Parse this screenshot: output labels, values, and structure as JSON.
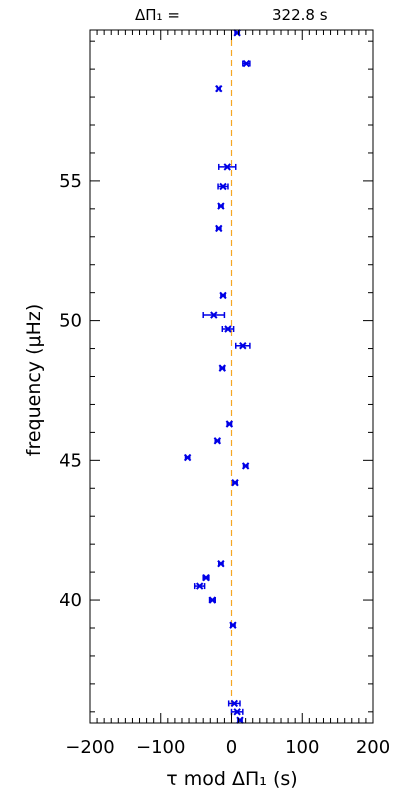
{
  "chart_data": {
    "type": "scatter",
    "title_label": "ΔΠ₁ =",
    "title_value": "322.8 s",
    "xlabel": "τ mod ΔΠ₁ (s)",
    "ylabel": "frequency (μHz)",
    "xlim": [
      -200,
      200
    ],
    "ylim": [
      35.6,
      60.4
    ],
    "x_ticks": [
      -200,
      -100,
      0,
      100,
      200
    ],
    "x_tick_labels": [
      "−200",
      "−100",
      "0",
      "100",
      "200"
    ],
    "y_ticks": [
      40,
      45,
      50,
      55
    ],
    "y_tick_labels": [
      "40",
      "45",
      "50",
      "55"
    ],
    "reference_line_x": 0,
    "colors": {
      "points": "#0000e6",
      "reference_line": "#f5a623",
      "axes": "#000000"
    },
    "points": [
      {
        "x": 8,
        "y": 60.3,
        "err": 3
      },
      {
        "x": 21,
        "y": 59.2,
        "err": 5
      },
      {
        "x": -18,
        "y": 58.3,
        "err": 2
      },
      {
        "x": -6,
        "y": 55.5,
        "err": 12
      },
      {
        "x": -12,
        "y": 54.8,
        "err": 7
      },
      {
        "x": -15,
        "y": 54.1,
        "err": 3
      },
      {
        "x": -18,
        "y": 53.3,
        "err": 3
      },
      {
        "x": -12,
        "y": 50.9,
        "err": 3
      },
      {
        "x": -25,
        "y": 50.2,
        "err": 15
      },
      {
        "x": -5,
        "y": 49.7,
        "err": 8
      },
      {
        "x": 16,
        "y": 49.1,
        "err": 10
      },
      {
        "x": -13,
        "y": 48.3,
        "err": 3
      },
      {
        "x": -3,
        "y": 46.3,
        "err": 3
      },
      {
        "x": -20,
        "y": 45.7,
        "err": 3
      },
      {
        "x": -62,
        "y": 45.1,
        "err": 3
      },
      {
        "x": 20,
        "y": 44.8,
        "err": 3
      },
      {
        "x": 5,
        "y": 44.2,
        "err": 3
      },
      {
        "x": -15,
        "y": 41.3,
        "err": 3
      },
      {
        "x": -36,
        "y": 40.8,
        "err": 4
      },
      {
        "x": -45,
        "y": 40.5,
        "err": 7
      },
      {
        "x": -27,
        "y": 40.0,
        "err": 4
      },
      {
        "x": 2,
        "y": 39.1,
        "err": 3
      },
      {
        "x": 4,
        "y": 36.3,
        "err": 8
      },
      {
        "x": 8,
        "y": 36.0,
        "err": 8
      },
      {
        "x": 12,
        "y": 35.7,
        "err": 3
      }
    ]
  }
}
